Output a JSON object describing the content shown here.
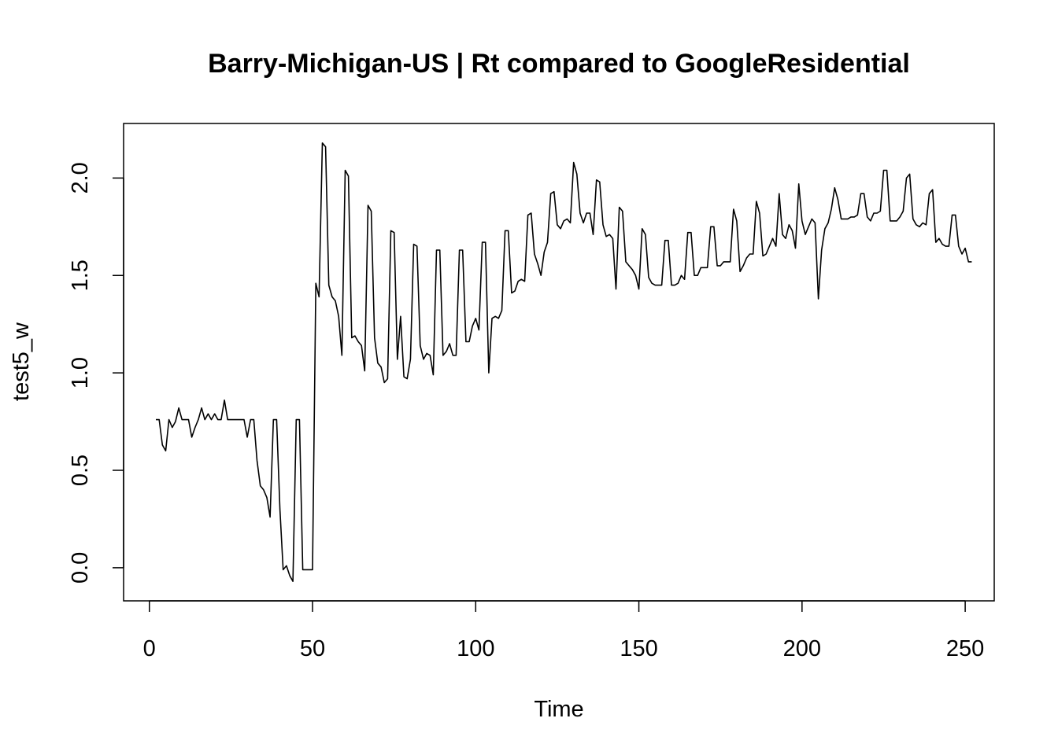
{
  "chart_data": {
    "type": "line",
    "title": "Barry-Michigan-US | Rt compared to GoogleResidential",
    "xlabel": "Time",
    "ylabel": "test5_w",
    "xlim": [
      -7.9,
      258.9
    ],
    "ylim": [
      -0.17,
      2.28
    ],
    "x_ticks": [
      "0",
      "50",
      "100",
      "150",
      "200",
      "250"
    ],
    "x_tick_values": [
      0,
      50,
      100,
      150,
      200,
      250
    ],
    "y_ticks": [
      "0.0",
      "0.5",
      "1.0",
      "1.5",
      "2.0"
    ],
    "y_tick_values": [
      0,
      0.5,
      1.0,
      1.5,
      2.0
    ],
    "grid": false,
    "legend": "none",
    "line_color": "#000000",
    "series": [
      {
        "x_start": 2,
        "values": [
          0.76,
          0.76,
          0.63,
          0.6,
          0.76,
          0.72,
          0.75,
          0.82,
          0.76,
          0.76,
          0.76,
          0.67,
          0.72,
          0.76,
          0.82,
          0.76,
          0.79,
          0.76,
          0.79,
          0.76,
          0.76,
          0.86,
          0.76,
          0.76,
          0.76,
          0.76,
          0.76,
          0.76,
          0.67,
          0.76,
          0.76,
          0.55,
          0.42,
          0.4,
          0.36,
          0.26,
          0.76,
          0.76,
          0.3,
          -0.01,
          0.01,
          -0.04,
          -0.07,
          0.76,
          0.76,
          -0.01,
          -0.01,
          -0.01,
          -0.01,
          1.46,
          1.39,
          2.18,
          2.16,
          1.45,
          1.39,
          1.37,
          1.29,
          1.09,
          2.04,
          2.01,
          1.18,
          1.19,
          1.16,
          1.14,
          1.01,
          1.86,
          1.83,
          1.18,
          1.05,
          1.03,
          0.95,
          0.97,
          1.73,
          1.72,
          1.07,
          1.29,
          0.98,
          0.97,
          1.07,
          1.66,
          1.65,
          1.14,
          1.07,
          1.1,
          1.09,
          0.99,
          1.63,
          1.63,
          1.09,
          1.11,
          1.15,
          1.09,
          1.09,
          1.63,
          1.63,
          1.16,
          1.16,
          1.24,
          1.28,
          1.22,
          1.67,
          1.67,
          1.0,
          1.28,
          1.29,
          1.28,
          1.32,
          1.73,
          1.73,
          1.41,
          1.42,
          1.47,
          1.48,
          1.47,
          1.81,
          1.82,
          1.61,
          1.56,
          1.5,
          1.62,
          1.67,
          1.92,
          1.93,
          1.76,
          1.74,
          1.78,
          1.79,
          1.77,
          2.08,
          2.02,
          1.82,
          1.77,
          1.82,
          1.82,
          1.71,
          1.99,
          1.98,
          1.76,
          1.7,
          1.71,
          1.69,
          1.43,
          1.85,
          1.83,
          1.57,
          1.55,
          1.53,
          1.5,
          1.43,
          1.74,
          1.71,
          1.49,
          1.46,
          1.45,
          1.45,
          1.45,
          1.68,
          1.68,
          1.45,
          1.45,
          1.46,
          1.5,
          1.48,
          1.72,
          1.72,
          1.5,
          1.5,
          1.54,
          1.54,
          1.54,
          1.75,
          1.75,
          1.55,
          1.55,
          1.57,
          1.57,
          1.57,
          1.84,
          1.78,
          1.52,
          1.55,
          1.59,
          1.61,
          1.61,
          1.88,
          1.82,
          1.6,
          1.61,
          1.65,
          1.69,
          1.65,
          1.92,
          1.71,
          1.69,
          1.76,
          1.73,
          1.64,
          1.97,
          1.78,
          1.71,
          1.75,
          1.79,
          1.77,
          1.38,
          1.63,
          1.74,
          1.77,
          1.84,
          1.95,
          1.89,
          1.79,
          1.79,
          1.79,
          1.8,
          1.8,
          1.81,
          1.92,
          1.92,
          1.8,
          1.78,
          1.82,
          1.82,
          1.83,
          2.04,
          2.04,
          1.78,
          1.78,
          1.78,
          1.8,
          1.83,
          2.0,
          2.02,
          1.79,
          1.76,
          1.75,
          1.77,
          1.76,
          1.92,
          1.94,
          1.67,
          1.69,
          1.66,
          1.65,
          1.65,
          1.81,
          1.81,
          1.65,
          1.61,
          1.64,
          1.57,
          1.57
        ]
      }
    ]
  }
}
